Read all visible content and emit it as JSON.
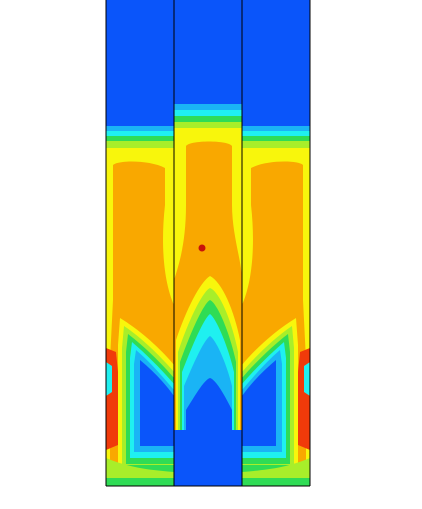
{
  "palette": {
    "blue": "#0A55FA",
    "cyan_blue": "#1AB4F5",
    "cyan": "#1FF0F0",
    "green": "#2FDC55",
    "green_yellow": "#A8EE2A",
    "yellow": "#F8F60C",
    "orange": "#F9A800",
    "red": "#F03A0A",
    "marker": "#C8120A",
    "outline": "#000000",
    "background": "#FFFFFF"
  },
  "figure": {
    "panels": [
      "left",
      "center",
      "right"
    ],
    "probe_marker": "red-dot"
  }
}
